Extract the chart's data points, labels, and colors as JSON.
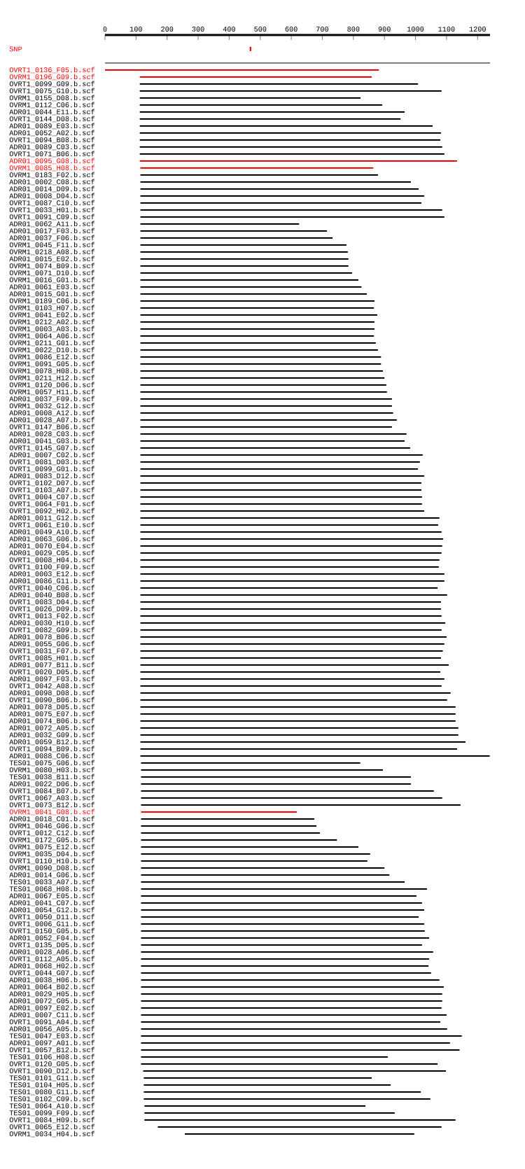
{
  "chart_data": {
    "type": "bar",
    "orientation": "horizontal",
    "categories": [
      "SNP",
      null,
      null,
      "OVRT1_0136_F05.b.scf",
      "OVRM1_0196_G09.b.scf",
      "OVRT1_0099_G09.b.scf",
      "OVRT1_0075_G10.b.scf",
      "OVRM1_0155_D08.b.scf",
      "OVRM1_0112_C06.b.scf",
      "ADR01_0044_E11.b.scf",
      "OVRT1_0144_D08.b.scf",
      "ADR01_0089_E03.b.scf",
      "ADR01_0052_A02.b.scf",
      "OVRT1_0094_B08.b.scf",
      "ADR01_0089_C03.b.scf",
      "OVRT1_0071_B06.b.scf",
      "ADR01_0095_G08.b.scf",
      "OVRM1_0085_H08.b.scf",
      "OVRM1_0183_F02.b.scf",
      "ADR01_0002_C08.b.scf",
      "ADR01_0014_D09.b.scf",
      "ADR01_0008_D04.b.scf",
      "OVRT1_0087_C10.b.scf",
      "OVRT1_0033_H01.b.scf",
      "OVRT1_0091_C09.b.scf",
      "ADR01_0062_A11.b.scf",
      "ADR01_0017_F03.b.scf",
      "ADR01_0037_F06.b.scf",
      "OVRM1_0045_F11.b.scf",
      "OVRM1_0218_A08.b.scf",
      "ADR01_0015_E02.b.scf",
      "OVRM1_0074_B09.b.scf",
      "OVRM1_0071_D10.b.scf",
      "OVRM1_0016_G01.b.scf",
      "ADR01_0061_E03.b.scf",
      "ADR01_0015_G01.b.scf",
      "OVRM1_0189_C06.b.scf",
      "OVRM1_0103_H07.b.scf",
      "OVRM1_0041_E02.b.scf",
      "OVRM1_0212_A02.b.scf",
      "OVRM1_0003_A03.b.scf",
      "OVRM1_0064_A06.b.scf",
      "OVRM1_0211_G01.b.scf",
      "OVRM1_0022_D10.b.scf",
      "OVRM1_0086_E12.b.scf",
      "OVRM1_0091_G05.b.scf",
      "OVRM1_0078_H08.b.scf",
      "OVRM1_0211_H12.b.scf",
      "OVRM1_0120_D06.b.scf",
      "OVRM1_0057_H11.b.scf",
      "ADR01_0037_F09.b.scf",
      "OVRM1_0032_G12.b.scf",
      "ADR01_0008_A12.b.scf",
      "ADR01_0028_A07.b.scf",
      "OVRT1_0147_B06.b.scf",
      "ADR01_0028_C03.b.scf",
      "ADR01_0041_G03.b.scf",
      "OVRT1_0145_G07.b.scf",
      "ADR01_0007_C02.b.scf",
      "OVRT1_0081_D03.b.scf",
      "OVRT1_0099_G01.b.scf",
      "ADR01_0083_D12.b.scf",
      "OVRT1_0102_D07.b.scf",
      "OVRT1_0103_A07.b.scf",
      "OVRT1_0004_C07.b.scf",
      "OVRT1_0064_F01.b.scf",
      "OVRT1_0092_H02.b.scf",
      "ADR01_0011_G12.b.scf",
      "OVRT1_0061_E10.b.scf",
      "ADR01_0049_A10.b.scf",
      "ADR01_0063_G06.b.scf",
      "ADR01_0070_E04.b.scf",
      "ADR01_0029_C05.b.scf",
      "OVRT1_0008_H04.b.scf",
      "OVRT1_0100_F09.b.scf",
      "ADR01_0003_E12.b.scf",
      "ADR01_0086_G11.b.scf",
      "OVRT1_0040_C06.b.scf",
      "ADR01_0040_B08.b.scf",
      "OVRT1_0083_D04.b.scf",
      "OVRT1_0026_D09.b.scf",
      "OVRT1_0013_F02.b.scf",
      "ADR01_0030_H10.b.scf",
      "OVRT1_0082_G09.b.scf",
      "ADR01_0078_B06.b.scf",
      "ADR01_0055_G06.b.scf",
      "OVRT1_0031_F07.b.scf",
      "OVRT1_0085_H01.b.scf",
      "ADR01_0077_B11.b.scf",
      "OVRT1_0020_D05.b.scf",
      "ADR01_0097_F03.b.scf",
      "OVRT1_0042_A08.b.scf",
      "ADR01_0098_D08.b.scf",
      "OVRT1_0090_B06.b.scf",
      "ADR01_0078_D05.b.scf",
      "ADR01_0075_E07.b.scf",
      "ADR01_0074_B06.b.scf",
      "ADR01_0072_A05.b.scf",
      "ADR01_0032_G09.b.scf",
      "ADR01_0059_B12.b.scf",
      "OVRT1_0094_B09.b.scf",
      "ADR01_0088_C06.b.scf",
      "TES01_0075_G06.b.scf",
      "OVRM1_0080_H03.b.scf",
      "TES01_0038_B11.b.scf",
      "ADR01_0022_D06.b.scf",
      "OVRT1_0084_B07.b.scf",
      "OVRT1_0067_A03.b.scf",
      "OVRT1_0073_B12.b.scf",
      "OVRM1_0041_G08.b.scf",
      "ADR01_0018_C01.b.scf",
      "OVRM1_0046_G06.b.scf",
      "OVRT1_0012_C12.b.scf",
      "OVRM1_0172_G05.b.scf",
      "OVRM1_0075_E12.b.scf",
      "OVRM1_0035_D04.b.scf",
      "OVRT1_0110_H10.b.scf",
      "OVRM1_0090_D08.b.scf",
      "ADR01_0014_G06.b.scf",
      "TES01_0033_A07.b.scf",
      "TES01_0068_H08.b.scf",
      "ADR01_0067_E05.b.scf",
      "ADR01_0041_C07.b.scf",
      "ADR01_0054_G12.b.scf",
      "OVRT1_0050_D11.b.scf",
      "OVRT1_0006_G11.b.scf",
      "OVRT1_0150_G05.b.scf",
      "ADR01_0052_F04.b.scf",
      "OVRT1_0135_D05.b.scf",
      "ADR01_0028_A06.b.scf",
      "OVRT1_0112_A05.b.scf",
      "ADR01_0068_H02.b.scf",
      "OVRT1_0044_G07.b.scf",
      "ADR01_0038_H06.b.scf",
      "ADR01_0064_B02.b.scf",
      "ADR01_0029_H05.b.scf",
      "ADR01_0072_G05.b.scf",
      "ADR01_0097_E02.b.scf",
      "ADR01_0007_C11.b.scf",
      "OVRT1_0091_A04.b.scf",
      "ADR01_0056_A05.b.scf",
      "TES01_0047_E03.b.scf",
      "ADR01_0097_A01.b.scf",
      "OVRT1_0057_B12.b.scf",
      "TES01_0106_H08.b.scf",
      "OVRT1_0120_G05.b.scf",
      "OVRT1_0090_D12.b.scf",
      "TES01_0101_G11.b.scf",
      "TES01_0104_H05.b.scf",
      "TES01_0080_G11.b.scf",
      "TES01_0102_C09.b.scf",
      "TES01_0064_A10.b.scf",
      "TES01_0099_F09.b.scf",
      "OVRT1_0084_H09.b.scf",
      "OVRT1_0065_E12.b.scf",
      "OVRM1_0034_H04.b.scf"
    ],
    "base": [
      466,
      null,
      0,
      0,
      112,
      112,
      112,
      112,
      112,
      112,
      112,
      112,
      112,
      112,
      112,
      112,
      112,
      114,
      114,
      114,
      114,
      114,
      114,
      114,
      114,
      114,
      114,
      114,
      114,
      114,
      114,
      114,
      114,
      114,
      114,
      114,
      114,
      114,
      114,
      114,
      114,
      114,
      114,
      114,
      114,
      114,
      114,
      114,
      114,
      114,
      114,
      114,
      114,
      114,
      114,
      114,
      114,
      114,
      114,
      114,
      114,
      114,
      114,
      114,
      114,
      114,
      114,
      114,
      114,
      114,
      114,
      114,
      114,
      114,
      114,
      114,
      114,
      114,
      114,
      114,
      114,
      114,
      114,
      114,
      114,
      114,
      114,
      114,
      114,
      114,
      114,
      114,
      114,
      114,
      114,
      114,
      114,
      114,
      114,
      114,
      114,
      114,
      116,
      116,
      116,
      116,
      116,
      116,
      116,
      116,
      116,
      116,
      116,
      116,
      116,
      116,
      116,
      116,
      116,
      116,
      116,
      116,
      116,
      116,
      116,
      116,
      116,
      116,
      116,
      116,
      116,
      116,
      116,
      116,
      116,
      116,
      116,
      116,
      116,
      116,
      116,
      116,
      116,
      116,
      116,
      116,
      123,
      125,
      125,
      125,
      125,
      127,
      127,
      127,
      170,
      257
    ],
    "values": [
      5,
      null,
      1240,
      882,
      747,
      896,
      972,
      711,
      781,
      853,
      840,
      943,
      970,
      968,
      974,
      981,
      1022,
      750,
      765,
      871,
      896,
      914,
      905,
      972,
      979,
      511,
      601,
      619,
      664,
      668,
      670,
      670,
      682,
      702,
      712,
      729,
      754,
      752,
      763,
      754,
      754,
      752,
      758,
      765,
      775,
      775,
      781,
      786,
      792,
      794,
      810,
      810,
      814,
      826,
      810,
      857,
      851,
      869,
      909,
      900,
      894,
      914,
      905,
      905,
      907,
      907,
      914,
      963,
      959,
      970,
      975,
      972,
      970,
      963,
      961,
      979,
      979,
      957,
      988,
      968,
      968,
      970,
      982,
      970,
      986,
      979,
      974,
      968,
      993,
      966,
      979,
      970,
      999,
      988,
      1015,
      1015,
      1015,
      1024,
      1024,
      1047,
      1020,
      1125,
      706,
      779,
      869,
      869,
      943,
      970,
      1029,
      502,
      558,
      565,
      576,
      631,
      700,
      738,
      729,
      784,
      800,
      849,
      921,
      887,
      905,
      912,
      894,
      912,
      914,
      928,
      905,
      941,
      928,
      926,
      934,
      961,
      975,
      970,
      970,
      968,
      984,
      964,
      986,
      1033,
      995,
      1026,
      795,
      955,
      975,
      734,
      795,
      892,
      923,
      712,
      806,
      1002,
      914,
      739
    ],
    "colors": [
      "#ff0000",
      null,
      "#000000",
      "#ff0000",
      "#ff0000",
      "#000000",
      "#000000",
      "#000000",
      "#000000",
      "#000000",
      "#000000",
      "#000000",
      "#000000",
      "#000000",
      "#000000",
      "#000000",
      "#ff0000",
      "#ff0000",
      "#000000",
      "#000000",
      "#000000",
      "#000000",
      "#000000",
      "#000000",
      "#000000",
      "#000000",
      "#000000",
      "#000000",
      "#000000",
      "#000000",
      "#000000",
      "#000000",
      "#000000",
      "#000000",
      "#000000",
      "#000000",
      "#000000",
      "#000000",
      "#000000",
      "#000000",
      "#000000",
      "#000000",
      "#000000",
      "#000000",
      "#000000",
      "#000000",
      "#000000",
      "#000000",
      "#000000",
      "#000000",
      "#000000",
      "#000000",
      "#000000",
      "#000000",
      "#000000",
      "#000000",
      "#000000",
      "#000000",
      "#000000",
      "#000000",
      "#000000",
      "#000000",
      "#000000",
      "#000000",
      "#000000",
      "#000000",
      "#000000",
      "#000000",
      "#000000",
      "#000000",
      "#000000",
      "#000000",
      "#000000",
      "#000000",
      "#000000",
      "#000000",
      "#000000",
      "#000000",
      "#000000",
      "#000000",
      "#000000",
      "#000000",
      "#000000",
      "#000000",
      "#000000",
      "#000000",
      "#000000",
      "#000000",
      "#000000",
      "#000000",
      "#000000",
      "#000000",
      "#000000",
      "#000000",
      "#000000",
      "#000000",
      "#000000",
      "#000000",
      "#000000",
      "#000000",
      "#000000",
      "#000000",
      "#000000",
      "#000000",
      "#000000",
      "#000000",
      "#000000",
      "#000000",
      "#000000",
      "#ff0000",
      "#000000",
      "#000000",
      "#000000",
      "#000000",
      "#000000",
      "#000000",
      "#000000",
      "#000000",
      "#000000",
      "#000000",
      "#000000",
      "#000000",
      "#000000",
      "#000000",
      "#000000",
      "#000000",
      "#000000",
      "#000000",
      "#000000",
      "#000000",
      "#000000",
      "#000000",
      "#000000",
      "#000000",
      "#000000",
      "#000000",
      "#000000",
      "#000000",
      "#000000",
      "#000000",
      "#000000",
      "#000000",
      "#000000",
      "#000000",
      "#000000",
      "#000000",
      "#000000",
      "#000000",
      "#000000",
      "#000000",
      "#000000",
      "#000000",
      "#000000",
      "#000000",
      "#000000",
      "#000000"
    ],
    "xlim": [
      0,
      1240
    ],
    "xticks": [
      0,
      100,
      200,
      300,
      400,
      500,
      600,
      700,
      800,
      900,
      1000,
      1100,
      1200
    ]
  }
}
